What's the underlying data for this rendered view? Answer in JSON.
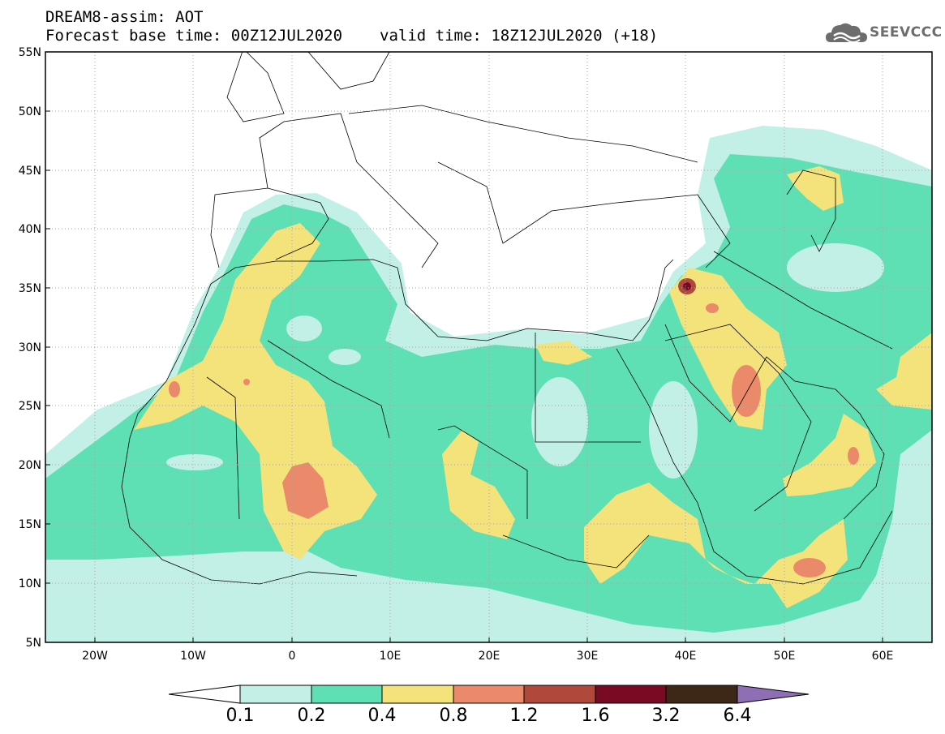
{
  "header": {
    "title": "DREAM8-assim: AOT",
    "base_time": "Forecast base time: 00Z12JUL2020",
    "valid_time": "valid time: 18Z12JUL2020 (+18)"
  },
  "logo": {
    "text": "SEEVCCC",
    "icon": "cloud-icon"
  },
  "map": {
    "lon_range": [
      -25,
      65
    ],
    "lat_range": [
      5,
      55
    ],
    "lat_ticks": [
      "5N",
      "10N",
      "15N",
      "20N",
      "25N",
      "30N",
      "35N",
      "40N",
      "45N",
      "50N",
      "55N"
    ],
    "lon_ticks": [
      "20W",
      "10W",
      "0",
      "10E",
      "20E",
      "30E",
      "40E",
      "50E",
      "60E"
    ],
    "grid": "dotted"
  },
  "colorbar": {
    "labels": [
      "0.1",
      "0.2",
      "0.4",
      "0.8",
      "1.2",
      "1.6",
      "3.2",
      "6.4"
    ],
    "colors": [
      "#ffffff",
      "#c2f0e7",
      "#5ee0b4",
      "#f4e27a",
      "#eb8a6a",
      "#b0483b",
      "#7a0a24",
      "#3d2817",
      "#8e6fb5"
    ]
  }
}
